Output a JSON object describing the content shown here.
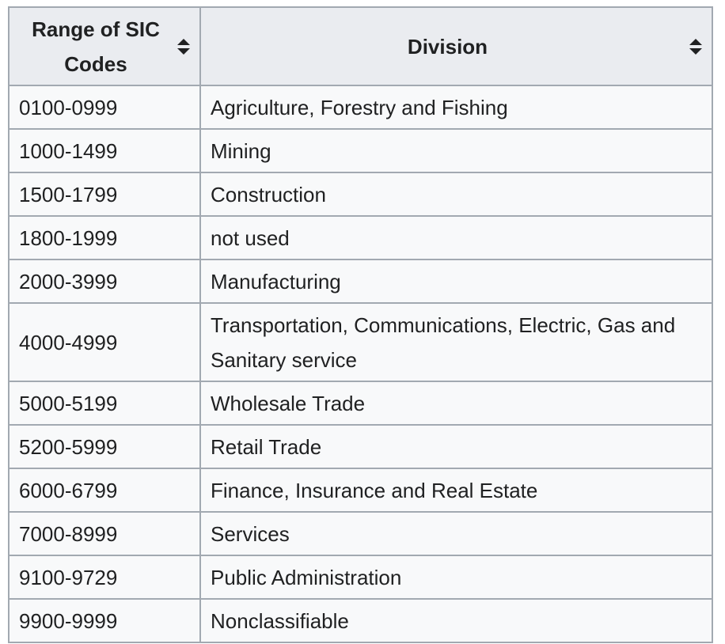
{
  "table": {
    "headers": [
      {
        "label": "Range of SIC Codes",
        "sortable": true,
        "icon": "sort-icon"
      },
      {
        "label": "Division",
        "sortable": true,
        "icon": "sort-icon"
      }
    ],
    "rows": [
      {
        "range": "0100-0999",
        "division": "Agriculture, Forestry and Fishing"
      },
      {
        "range": "1000-1499",
        "division": "Mining"
      },
      {
        "range": "1500-1799",
        "division": "Construction"
      },
      {
        "range": "1800-1999",
        "division": "not used"
      },
      {
        "range": "2000-3999",
        "division": "Manufacturing"
      },
      {
        "range": "4000-4999",
        "division": "Transportation, Communications, Electric, Gas and Sanitary service"
      },
      {
        "range": "5000-5199",
        "division": "Wholesale Trade"
      },
      {
        "range": "5200-5999",
        "division": "Retail Trade"
      },
      {
        "range": "6000-6799",
        "division": "Finance, Insurance and Real Estate"
      },
      {
        "range": "7000-8999",
        "division": "Services"
      },
      {
        "range": "9100-9729",
        "division": "Public Administration"
      },
      {
        "range": "9900-9999",
        "division": "Nonclassifiable"
      }
    ]
  },
  "colors": {
    "header_bg": "#eaecf0",
    "cell_bg": "#f8f9fa",
    "border": "#a2a9b1",
    "text": "#202122"
  }
}
